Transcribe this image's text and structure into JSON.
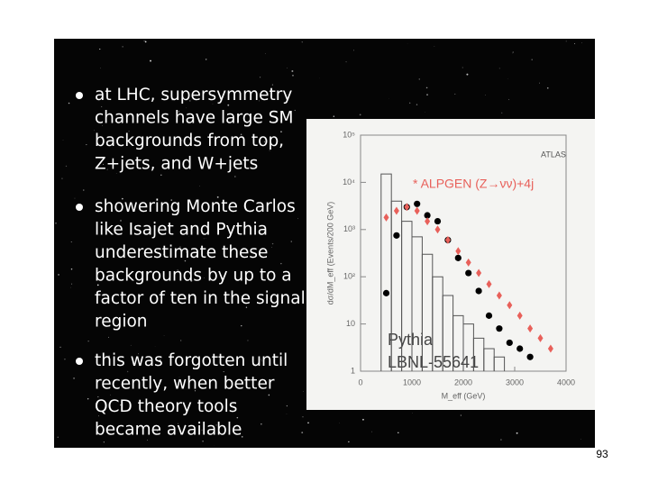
{
  "slide": {
    "bullets": [
      [
        "at LHC, supersymmetry",
        "channels have large SM",
        "backgrounds from top,",
        "Z+jets, and W+jets"
      ],
      [
        "showering Monte Carlos",
        "like Isajet and Pythia",
        "underestimate these",
        "backgrounds by up to a",
        "factor of ten in the signal",
        "region"
      ],
      [
        "this was forgotten until",
        "recently, when better",
        "QCD theory tools",
        "became available"
      ]
    ],
    "page_number": "93"
  },
  "chart_data": {
    "type": "scatter",
    "annotations": [
      "ATLAS",
      "Pythia",
      "LBNL-55641"
    ],
    "x_label": "M_eff (GeV)",
    "y_label": "dσ/dM_eff (Events/200 GeV)",
    "xlim": [
      0,
      4000
    ],
    "ylim": [
      1,
      100000
    ],
    "log_y": true,
    "xticks": [
      0,
      1000,
      2000,
      3000,
      4000
    ],
    "yticks": [
      1,
      10,
      {
        "value": 100,
        "label": "10²"
      },
      {
        "value": 1000,
        "label": "10³"
      },
      {
        "value": 10000,
        "label": "10⁴"
      },
      {
        "value": 100000,
        "label": "10⁵"
      }
    ],
    "series": [
      {
        "marker": "step",
        "color": "#555555",
        "x": [
          400,
          600,
          800,
          1000,
          1200,
          1400,
          1600,
          1800,
          2000,
          2200,
          2400,
          2600
        ],
        "values": [
          15000,
          4000,
          1500,
          700,
          300,
          100,
          40,
          15,
          10,
          5,
          3,
          2
        ]
      },
      {
        "marker": "circle",
        "color": "#000000",
        "x": [
          500,
          700,
          900,
          1100,
          1300,
          1500,
          1700,
          1900,
          2100,
          2300,
          2500,
          2700,
          2900,
          3100,
          3300
        ],
        "values": [
          45,
          750,
          3000,
          3500,
          2000,
          1500,
          600,
          250,
          120,
          50,
          15,
          8,
          4,
          3,
          2
        ]
      },
      {
        "name": "* ALPGEN (Z→νν)+4j",
        "marker": "diamond",
        "color": "#e8605a",
        "x": [
          500,
          700,
          900,
          1100,
          1300,
          1500,
          1700,
          1900,
          2100,
          2300,
          2500,
          2700,
          2900,
          3100,
          3300,
          3500,
          3700
        ],
        "values": [
          1800,
          2500,
          3000,
          2500,
          1500,
          1000,
          600,
          350,
          200,
          120,
          70,
          40,
          25,
          15,
          8,
          5,
          3
        ]
      }
    ]
  }
}
